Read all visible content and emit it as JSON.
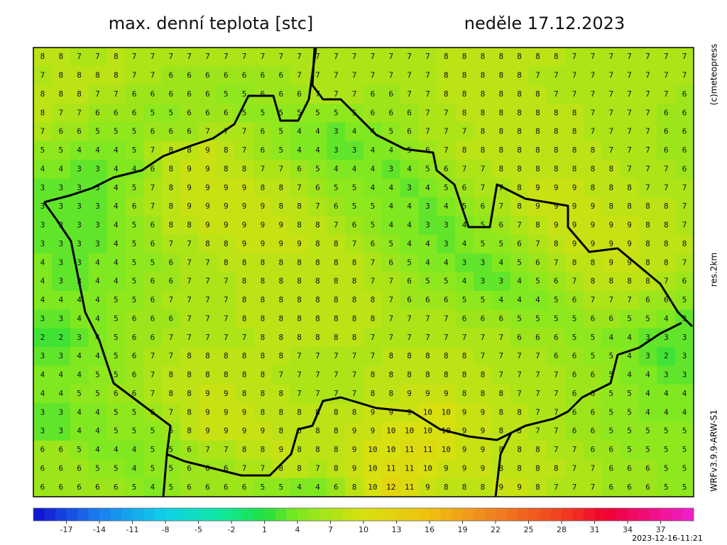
{
  "header": {
    "title": "max. denní teplota [stc]",
    "date": "neděle 17.12.2023"
  },
  "side_labels": {
    "copyright": "(c)meteopress",
    "resolution": "res.2km",
    "model": "WRFv3.9.9-ARW-S1"
  },
  "map": {
    "grid": [
      [
        8,
        8,
        7,
        7,
        8,
        7,
        7,
        7,
        7,
        7,
        7,
        7,
        7,
        7,
        7,
        7,
        7,
        7,
        7,
        7,
        7,
        7,
        8,
        8,
        8,
        8,
        8,
        8,
        8,
        7,
        7,
        7,
        7,
        7,
        7,
        7
      ],
      [
        7,
        8,
        8,
        8,
        8,
        7,
        7,
        6,
        6,
        6,
        6,
        6,
        6,
        6,
        7,
        7,
        7,
        7,
        7,
        7,
        7,
        7,
        8,
        8,
        8,
        8,
        8,
        7,
        7,
        7,
        7,
        7,
        7,
        7,
        7,
        7
      ],
      [
        8,
        8,
        8,
        7,
        7,
        6,
        6,
        6,
        6,
        6,
        5,
        5,
        6,
        6,
        6,
        7,
        7,
        7,
        6,
        6,
        7,
        7,
        8,
        8,
        8,
        8,
        8,
        8,
        7,
        7,
        7,
        7,
        7,
        7,
        7,
        6
      ],
      [
        8,
        7,
        7,
        6,
        6,
        6,
        5,
        5,
        6,
        6,
        6,
        5,
        5,
        5,
        5,
        5,
        5,
        5,
        6,
        6,
        6,
        7,
        7,
        8,
        8,
        8,
        8,
        8,
        8,
        8,
        7,
        7,
        7,
        7,
        6,
        6
      ],
      [
        7,
        6,
        6,
        5,
        5,
        5,
        6,
        6,
        6,
        7,
        7,
        7,
        6,
        5,
        4,
        4,
        3,
        4,
        4,
        5,
        6,
        7,
        7,
        7,
        8,
        8,
        8,
        8,
        8,
        8,
        7,
        7,
        7,
        7,
        6,
        6
      ],
      [
        5,
        5,
        4,
        4,
        4,
        5,
        7,
        8,
        8,
        9,
        8,
        7,
        6,
        5,
        4,
        4,
        3,
        3,
        4,
        4,
        5,
        6,
        7,
        8,
        8,
        8,
        8,
        8,
        8,
        8,
        8,
        7,
        7,
        7,
        6,
        6
      ],
      [
        4,
        4,
        3,
        3,
        4,
        4,
        6,
        8,
        9,
        9,
        8,
        8,
        7,
        7,
        6,
        5,
        4,
        4,
        4,
        3,
        4,
        5,
        6,
        7,
        7,
        8,
        8,
        8,
        8,
        8,
        8,
        8,
        7,
        7,
        7,
        6
      ],
      [
        3,
        3,
        3,
        3,
        4,
        5,
        7,
        8,
        9,
        9,
        9,
        9,
        8,
        8,
        7,
        6,
        5,
        5,
        4,
        4,
        3,
        4,
        5,
        6,
        7,
        7,
        8,
        9,
        9,
        9,
        8,
        8,
        8,
        7,
        7,
        7
      ],
      [
        3,
        3,
        3,
        3,
        4,
        6,
        7,
        8,
        9,
        9,
        9,
        9,
        9,
        8,
        8,
        7,
        6,
        5,
        5,
        4,
        4,
        3,
        4,
        5,
        6,
        7,
        8,
        9,
        9,
        9,
        9,
        8,
        8,
        8,
        8,
        7
      ],
      [
        3,
        3,
        3,
        3,
        4,
        5,
        6,
        8,
        8,
        9,
        9,
        9,
        9,
        9,
        8,
        8,
        7,
        6,
        5,
        4,
        4,
        3,
        3,
        4,
        5,
        6,
        7,
        8,
        9,
        9,
        9,
        9,
        9,
        8,
        8,
        7
      ],
      [
        3,
        3,
        3,
        3,
        4,
        5,
        6,
        7,
        7,
        8,
        8,
        9,
        9,
        9,
        9,
        8,
        8,
        7,
        6,
        5,
        4,
        4,
        3,
        4,
        5,
        5,
        6,
        7,
        8,
        9,
        9,
        9,
        9,
        8,
        8,
        8
      ],
      [
        4,
        3,
        3,
        4,
        4,
        5,
        5,
        6,
        7,
        7,
        8,
        8,
        8,
        8,
        8,
        8,
        8,
        8,
        7,
        6,
        5,
        4,
        4,
        3,
        3,
        4,
        5,
        6,
        7,
        8,
        8,
        9,
        9,
        8,
        8,
        7
      ],
      [
        4,
        3,
        3,
        4,
        4,
        5,
        6,
        6,
        7,
        7,
        7,
        8,
        8,
        8,
        8,
        8,
        8,
        8,
        7,
        7,
        6,
        5,
        5,
        4,
        3,
        3,
        4,
        5,
        6,
        7,
        8,
        8,
        8,
        8,
        7,
        6
      ],
      [
        4,
        4,
        4,
        4,
        5,
        5,
        6,
        7,
        7,
        7,
        7,
        8,
        8,
        8,
        8,
        8,
        8,
        8,
        8,
        7,
        6,
        6,
        6,
        5,
        5,
        4,
        4,
        4,
        5,
        6,
        7,
        7,
        7,
        6,
        6,
        5
      ],
      [
        3,
        3,
        4,
        4,
        5,
        6,
        6,
        6,
        7,
        7,
        7,
        8,
        8,
        8,
        8,
        8,
        8,
        8,
        8,
        7,
        7,
        7,
        7,
        6,
        6,
        6,
        5,
        5,
        5,
        5,
        6,
        6,
        5,
        5,
        4,
        3
      ],
      [
        2,
        2,
        3,
        4,
        5,
        6,
        6,
        7,
        7,
        7,
        7,
        7,
        8,
        8,
        8,
        8,
        8,
        8,
        7,
        7,
        7,
        7,
        7,
        7,
        7,
        7,
        6,
        6,
        6,
        5,
        5,
        4,
        4,
        3,
        3,
        3
      ],
      [
        3,
        3,
        4,
        4,
        5,
        6,
        7,
        7,
        8,
        8,
        8,
        8,
        8,
        8,
        7,
        7,
        7,
        7,
        7,
        8,
        8,
        8,
        8,
        8,
        7,
        7,
        7,
        7,
        6,
        6,
        5,
        5,
        4,
        3,
        2,
        3
      ],
      [
        4,
        4,
        4,
        5,
        5,
        6,
        7,
        8,
        8,
        8,
        8,
        8,
        8,
        7,
        7,
        7,
        7,
        7,
        8,
        8,
        8,
        8,
        8,
        8,
        8,
        7,
        7,
        7,
        7,
        6,
        6,
        5,
        4,
        4,
        3,
        3
      ],
      [
        4,
        4,
        5,
        5,
        6,
        6,
        7,
        8,
        8,
        9,
        9,
        8,
        8,
        8,
        7,
        7,
        7,
        7,
        8,
        8,
        9,
        9,
        9,
        8,
        8,
        8,
        7,
        7,
        7,
        6,
        6,
        5,
        5,
        4,
        4,
        4
      ],
      [
        3,
        3,
        4,
        4,
        5,
        5,
        6,
        7,
        8,
        9,
        9,
        9,
        8,
        8,
        8,
        8,
        8,
        8,
        9,
        9,
        9,
        10,
        10,
        9,
        9,
        8,
        8,
        7,
        7,
        6,
        6,
        5,
        5,
        4,
        4,
        4
      ],
      [
        3,
        3,
        4,
        4,
        5,
        5,
        5,
        6,
        8,
        9,
        9,
        9,
        9,
        8,
        8,
        8,
        8,
        9,
        9,
        10,
        10,
        10,
        10,
        9,
        9,
        8,
        8,
        7,
        7,
        6,
        6,
        5,
        5,
        5,
        5,
        5
      ],
      [
        6,
        6,
        5,
        4,
        4,
        4,
        5,
        5,
        6,
        7,
        7,
        8,
        8,
        9,
        8,
        8,
        8,
        9,
        10,
        10,
        11,
        11,
        10,
        9,
        9,
        8,
        8,
        8,
        7,
        7,
        6,
        6,
        5,
        5,
        5,
        5
      ],
      [
        6,
        6,
        6,
        5,
        5,
        4,
        5,
        5,
        6,
        6,
        6,
        7,
        7,
        8,
        8,
        7,
        8,
        9,
        10,
        11,
        11,
        10,
        9,
        9,
        9,
        8,
        8,
        8,
        8,
        7,
        7,
        6,
        6,
        6,
        5,
        5
      ],
      [
        6,
        6,
        6,
        6,
        6,
        5,
        4,
        5,
        6,
        6,
        6,
        6,
        5,
        5,
        4,
        4,
        6,
        8,
        10,
        12,
        11,
        9,
        8,
        8,
        8,
        9,
        9,
        8,
        7,
        7,
        7,
        6,
        6,
        6,
        5,
        5
      ]
    ]
  },
  "colorbar": {
    "lim": [
      -20,
      40
    ],
    "ticks": [
      -17,
      -14,
      -11,
      -8,
      -5,
      -2,
      1,
      4,
      7,
      10,
      13,
      16,
      19,
      22,
      25,
      28,
      31,
      34,
      37
    ],
    "stops": [
      {
        "value": -20,
        "color": "#1010d0"
      },
      {
        "value": -14,
        "color": "#1a7ff0"
      },
      {
        "value": -8,
        "color": "#10d0e8"
      },
      {
        "value": -3,
        "color": "#10e8a0"
      },
      {
        "value": 1,
        "color": "#20e040"
      },
      {
        "value": 4,
        "color": "#80e820"
      },
      {
        "value": 10,
        "color": "#d8e010"
      },
      {
        "value": 16,
        "color": "#f0c010"
      },
      {
        "value": 22,
        "color": "#f08020"
      },
      {
        "value": 28,
        "color": "#f04020"
      },
      {
        "value": 32,
        "color": "#f00030"
      },
      {
        "value": 40,
        "color": "#f020d0"
      }
    ]
  },
  "timestamp": "2023-12-16-11:21"
}
